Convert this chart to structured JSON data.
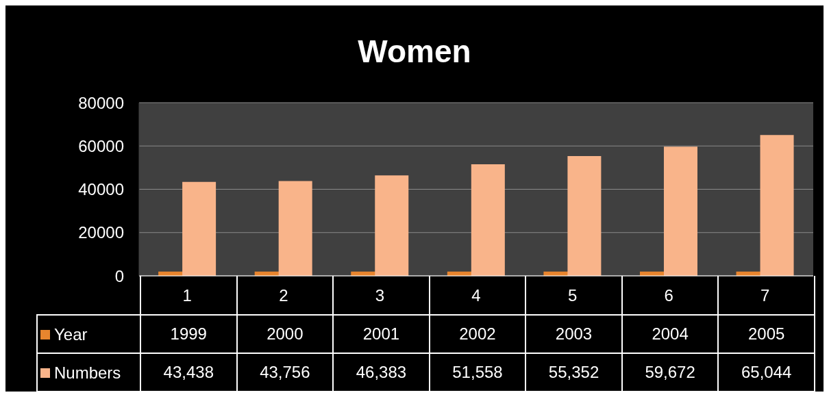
{
  "chart_data": {
    "type": "bar",
    "title": "Women",
    "categories": [
      "1",
      "2",
      "3",
      "4",
      "5",
      "6",
      "7"
    ],
    "series": [
      {
        "name": "Year",
        "color": "#e8852e",
        "values": [
          1999,
          2000,
          2001,
          2002,
          2003,
          2004,
          2005
        ],
        "value_labels": [
          "1999",
          "2000",
          "2001",
          "2002",
          "2003",
          "2004",
          "2005"
        ]
      },
      {
        "name": "Numbers",
        "color": "#f9b48a",
        "values": [
          43438,
          43756,
          46383,
          51558,
          55352,
          59672,
          65044
        ],
        "value_labels": [
          "43,438",
          "43,756",
          "46,383",
          "51,558",
          "55,352",
          "59,672",
          "65,044"
        ]
      }
    ],
    "ylim": [
      0,
      80000
    ],
    "yticks": [
      0,
      20000,
      40000,
      60000,
      80000
    ],
    "grid": "y",
    "legend": "bottom"
  }
}
